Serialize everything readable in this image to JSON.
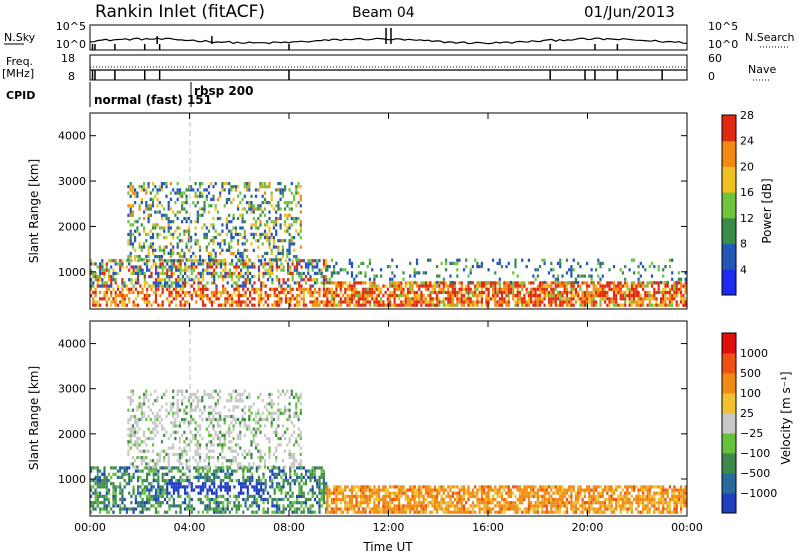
{
  "header": {
    "title": "Rankin Inlet (fitACF)",
    "beam": "Beam 04",
    "date": "01/Jun/2013"
  },
  "summary_panel": {
    "nsky_label": "N.Sky",
    "nsearch_label": "N.Search",
    "noise_ticks_left": [
      "10^5",
      "10^0"
    ],
    "noise_ticks_right": [
      "10^5",
      "10^0"
    ],
    "freq_label": "Freq.",
    "freq_unit": "[MHz]",
    "freq_ticks": [
      "18",
      "8"
    ],
    "nave_label": "Nave",
    "nave_ticks": [
      "60",
      "0"
    ],
    "cpid_label": "CPID",
    "cpid_modes": [
      "normal (fast) 151",
      "rbsp 200"
    ]
  },
  "chart_data": [
    {
      "type": "heatmap",
      "panel": "power",
      "ylabel": "Slant Range [km]",
      "xlabel": "",
      "ylim": [
        180,
        4500
      ],
      "yticks": [
        "1000",
        "2000",
        "3000",
        "4000"
      ],
      "xticks": [
        "00:00",
        "04:00",
        "08:00",
        "12:00",
        "16:00",
        "20:00",
        "00:00"
      ],
      "colorbar": {
        "label": "Power [dB]",
        "ticks": [
          "4",
          "8",
          "12",
          "16",
          "20",
          "24",
          "28"
        ],
        "colors": [
          "#1d2bf0",
          "#2356b8",
          "#3a8a4a",
          "#6ec43a",
          "#f0c020",
          "#f08a10",
          "#e02a10"
        ]
      },
      "regions": [
        {
          "t_start": 0.0,
          "t_end": 9.5,
          "range_min": 300,
          "range_max": 1300,
          "value": "high"
        },
        {
          "t_start": 1.5,
          "t_end": 8.5,
          "range_min": 1300,
          "range_max": 3000,
          "value": "mixed"
        },
        {
          "t_start": 9.5,
          "t_end": 24.0,
          "range_min": 300,
          "range_max": 800,
          "value": "high"
        },
        {
          "t_start": 9.5,
          "t_end": 24.0,
          "range_min": 800,
          "range_max": 1300,
          "value": "weak"
        }
      ]
    },
    {
      "type": "heatmap",
      "panel": "velocity",
      "ylabel": "Slant Range [km]",
      "xlabel": "Time UT",
      "ylim": [
        180,
        4500
      ],
      "yticks": [
        "1000",
        "2000",
        "3000",
        "4000"
      ],
      "xticks": [
        "00:00",
        "04:00",
        "08:00",
        "12:00",
        "16:00",
        "20:00",
        "00:00"
      ],
      "colorbar": {
        "label": "Velocity [m s⁻¹]",
        "ticks": [
          "1000",
          "500",
          "100",
          "25",
          "−25",
          "−100",
          "−500",
          "−1000"
        ],
        "colors": [
          "#1f3fbf",
          "#2a6a9a",
          "#3f8a4a",
          "#66c23c",
          "#c8c8c8",
          "#f0c030",
          "#f08a10",
          "#f05010",
          "#e01010"
        ]
      },
      "regions": [
        {
          "t_start": 0.0,
          "t_end": 9.5,
          "range_min": 300,
          "range_max": 1300,
          "value": "green/blue"
        },
        {
          "t_start": 1.5,
          "t_end": 8.5,
          "range_min": 1300,
          "range_max": 3000,
          "value": "grey"
        },
        {
          "t_start": 9.5,
          "t_end": 24.0,
          "range_min": 300,
          "range_max": 900,
          "value": "orange"
        }
      ]
    }
  ]
}
